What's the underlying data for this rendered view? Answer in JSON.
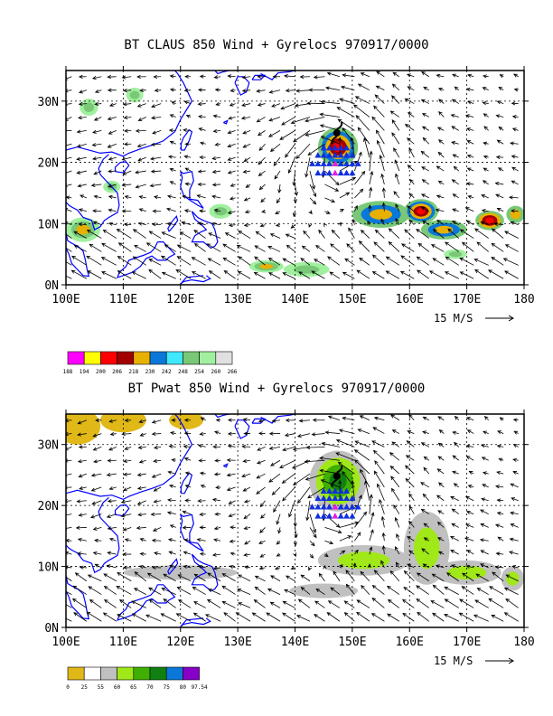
{
  "panels": [
    {
      "title": "BT CLAUS 850 Wind + Gyrelocs 970917/0000",
      "field": "CLAUS brightness temperature",
      "colorbar": {
        "labels": [
          "188",
          "194",
          "200",
          "206",
          "218",
          "230",
          "242",
          "248",
          "254",
          "260",
          "266"
        ],
        "colors": [
          "#ff00ff",
          "#ffff00",
          "#ff0000",
          "#a00000",
          "#e8b000",
          "#0a78d8",
          "#40e8ff",
          "#78c878",
          "#a0f0a0",
          "#e0e0e0"
        ]
      }
    },
    {
      "title": "BT Pwat 850 Wind + Gyrelocs 970917/0000",
      "field": "Precipitable water",
      "colorbar": {
        "labels": [
          "0",
          "25",
          "55",
          "60",
          "65",
          "70",
          "75",
          "80",
          "97.54"
        ],
        "colors": [
          "#e0b818",
          "#ffffff",
          "#c0c0c0",
          "#a0e818",
          "#40b000",
          "#108010",
          "#0a78d8",
          "#8800c8"
        ]
      }
    }
  ],
  "axes": {
    "x_ticks": [
      "100E",
      "110E",
      "120E",
      "130E",
      "140E",
      "150E",
      "160E",
      "170E",
      "180"
    ],
    "y_ticks": [
      "0N",
      "10N",
      "20N",
      "30N"
    ],
    "lon_range": [
      100,
      180
    ],
    "lat_range": [
      0,
      35
    ]
  },
  "vector_reference": {
    "label": "15 M/S"
  },
  "gyre": {
    "center": {
      "lon": 147,
      "lat": 19
    },
    "triangle_color": "#1030e0",
    "center_color": "#e020e0"
  },
  "colors": {
    "coastline": "#0000ff",
    "grid": "#000000"
  }
}
